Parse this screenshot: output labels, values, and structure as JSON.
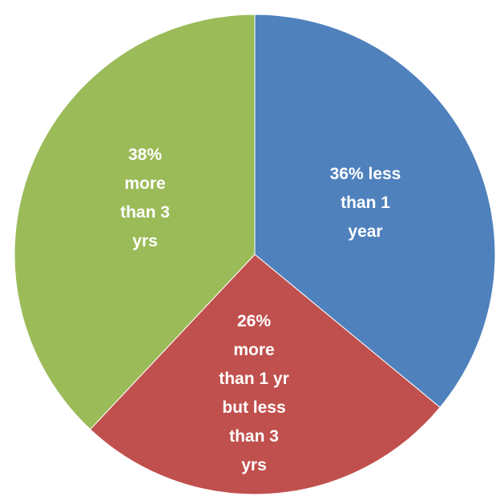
{
  "chart_data": {
    "type": "pie",
    "title": "",
    "start_angle_deg": 0,
    "direction": "clockwise",
    "slices": [
      {
        "value": 36,
        "color": "#4F81BD",
        "label_lines": [
          "36% less",
          "than 1",
          "year"
        ]
      },
      {
        "value": 26,
        "color": "#C0504D",
        "label_lines": [
          "26%",
          "more",
          "than 1 yr",
          "but less",
          "than 3",
          "yrs"
        ]
      },
      {
        "value": 38,
        "color": "#9BBB59",
        "label_lines": [
          "38%",
          "more",
          "than 3",
          "yrs"
        ]
      }
    ],
    "legend": "none"
  }
}
